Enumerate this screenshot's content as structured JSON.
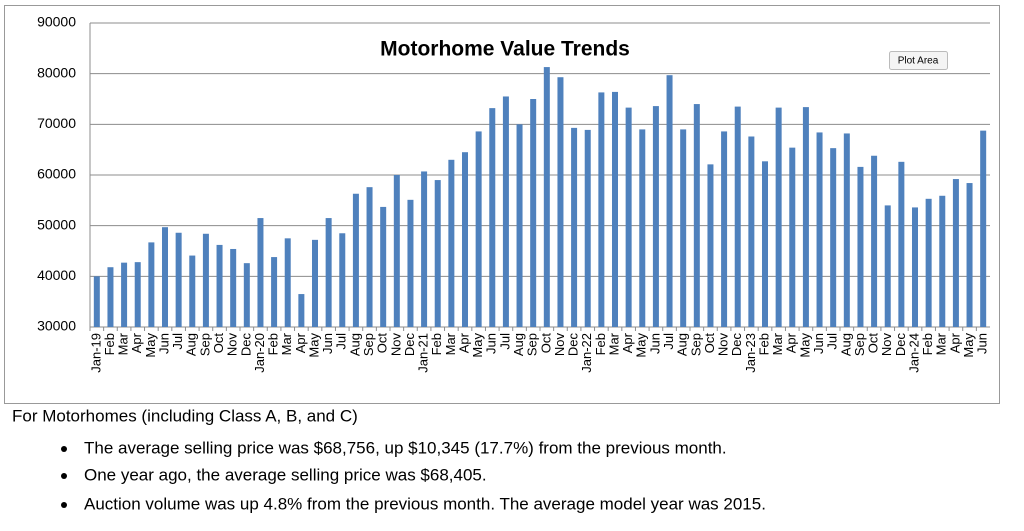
{
  "chart_data": {
    "type": "bar",
    "title": "Motorhome Value Trends",
    "categories": [
      "Jan-19",
      "Feb",
      "Mar",
      "Apr",
      "May",
      "Jun",
      "Jul",
      "Aug",
      "Sep",
      "Oct",
      "Nov",
      "Dec",
      "Jan-20",
      "Feb",
      "Mar",
      "Apr",
      "May",
      "Jun",
      "Jul",
      "Aug",
      "Sep",
      "Oct",
      "Nov",
      "Dec",
      "Jan-21",
      "Feb",
      "Mar",
      "Apr",
      "May",
      "Jun",
      "Jul",
      "Aug",
      "Sep",
      "Oct",
      "Nov",
      "Dec",
      "Jan-22",
      "Feb",
      "Mar",
      "Apr",
      "May",
      "Jun",
      "Jul",
      "Aug",
      "Sep",
      "Oct",
      "Nov",
      "Dec",
      "Jan-23",
      "Feb",
      "Mar",
      "Apr",
      "May",
      "Jun",
      "Jul",
      "Aug",
      "Sep",
      "Oct",
      "Nov",
      "Dec",
      "Jan-24",
      "Feb",
      "Mar",
      "Apr",
      "May",
      "Jun"
    ],
    "values": [
      40000,
      41800,
      42700,
      42800,
      46700,
      49700,
      48600,
      44100,
      48400,
      46200,
      45400,
      42600,
      51500,
      43800,
      47500,
      36500,
      47200,
      51500,
      48500,
      56300,
      57600,
      53700,
      60000,
      55100,
      60700,
      59000,
      63000,
      64500,
      68600,
      73200,
      75500,
      70000,
      75000,
      81300,
      79300,
      69300,
      68900,
      76300,
      76400,
      73300,
      69000,
      73600,
      79700,
      69000,
      74000,
      62100,
      68600,
      73500,
      67600,
      62700,
      73300,
      65400,
      73400,
      68400,
      65300,
      68200,
      61600,
      63800,
      54000,
      62600,
      53600,
      55300,
      55900,
      59200,
      58411,
      68756
    ],
    "color": "#4f81bd",
    "ylim": [
      30000,
      90000
    ],
    "yticks": [
      30000,
      40000,
      50000,
      60000,
      70000,
      80000,
      90000
    ],
    "grid": true
  },
  "tooltip": "Plot Area",
  "notes": {
    "heading": "For Motorhomes (including Class A, B, and C)",
    "bullets": [
      "The average selling price was $68,756, up $10,345 (17.7%) from the previous month.",
      "One year ago, the average selling price was $68,405.",
      "Auction volume was up 4.8% from the previous month.  The average model year was 2015."
    ]
  }
}
